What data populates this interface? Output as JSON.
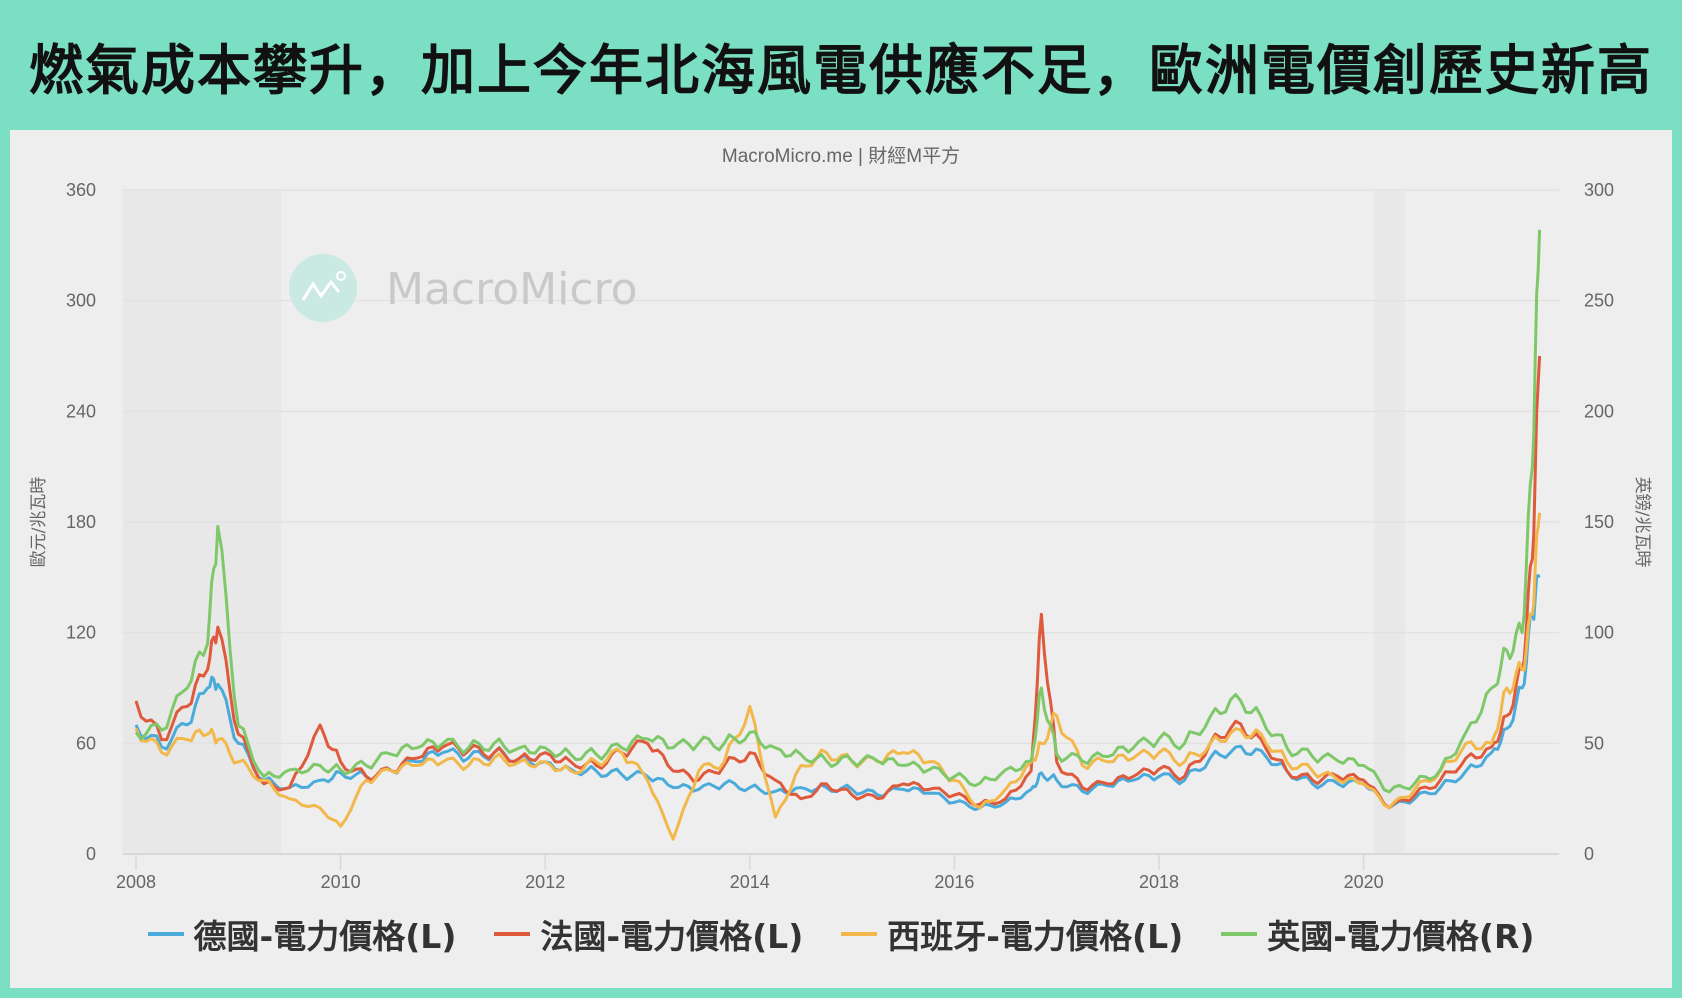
{
  "headline": "燃氣成本攀升，加上今年北海風電供應不足，歐洲電價創歷史新高",
  "source_credit": "MacroMicro.me | 財經M平方",
  "watermark": "MacroMicro",
  "colors": {
    "frame": "#7be0c3",
    "panel": "#eeeeee",
    "germany": "#4aabdb",
    "france": "#df5a3c",
    "spain": "#f2b84b",
    "uk": "#7ec86a"
  },
  "legend": [
    {
      "label": "德國-電力價格(L)",
      "color": "#4aabdb"
    },
    {
      "label": "法國-電力價格(L)",
      "color": "#df5a3c"
    },
    {
      "label": "西班牙-電力價格(L)",
      "color": "#f2b84b"
    },
    {
      "label": "英國-電力價格(R)",
      "color": "#7ec86a"
    }
  ],
  "chart_data": {
    "type": "line",
    "title": "燃氣成本攀升，加上今年北海風電供應不足，歐洲電價創歷史新高",
    "subtitle": "MacroMicro.me | 財經M平方",
    "xlabel": "",
    "ylabel_left": "歐元/兆瓦時",
    "ylabel_right": "英鎊/兆瓦時",
    "xlim": [
      2008.0,
      2021.75
    ],
    "ylim_left": [
      0,
      360
    ],
    "ylim_right": [
      0,
      300
    ],
    "yticks_left": [
      "0",
      "60",
      "120",
      "180",
      "240",
      "300",
      "360"
    ],
    "yticks_right": [
      "0",
      "50",
      "100",
      "150",
      "200",
      "250",
      "300"
    ],
    "xticks": [
      "2008",
      "2010",
      "2012",
      "2014",
      "2016",
      "2018",
      "2020"
    ],
    "grid": true,
    "legend_position": "bottom",
    "x": [
      2008.0,
      2008.25,
      2008.5,
      2008.7,
      2008.8,
      2009.0,
      2009.25,
      2009.5,
      2009.8,
      2010.0,
      2010.25,
      2010.5,
      2010.75,
      2011.0,
      2011.25,
      2011.5,
      2011.75,
      2012.0,
      2012.25,
      2012.5,
      2012.75,
      2013.0,
      2013.25,
      2013.5,
      2013.75,
      2014.0,
      2014.25,
      2014.5,
      2014.75,
      2015.0,
      2015.25,
      2015.5,
      2015.75,
      2016.0,
      2016.25,
      2016.5,
      2016.75,
      2016.85,
      2017.0,
      2017.25,
      2017.5,
      2017.75,
      2018.0,
      2018.25,
      2018.5,
      2018.75,
      2019.0,
      2019.25,
      2019.5,
      2019.75,
      2020.0,
      2020.25,
      2020.5,
      2020.75,
      2021.0,
      2021.25,
      2021.4,
      2021.55,
      2021.65,
      2021.72
    ],
    "series": [
      {
        "name": "德國-電力價格(L)",
        "axis": "left",
        "values": [
          70,
          58,
          70,
          90,
          92,
          60,
          40,
          36,
          40,
          44,
          42,
          45,
          50,
          55,
          52,
          55,
          52,
          50,
          46,
          45,
          43,
          42,
          36,
          35,
          38,
          36,
          34,
          36,
          36,
          35,
          32,
          35,
          33,
          28,
          25,
          28,
          35,
          44,
          40,
          34,
          37,
          40,
          42,
          40,
          52,
          58,
          56,
          45,
          38,
          38,
          38,
          25,
          30,
          36,
          45,
          55,
          68,
          90,
          130,
          150
        ]
      },
      {
        "name": "法國-電力價格(L)",
        "axis": "left",
        "values": [
          83,
          62,
          80,
          100,
          123,
          65,
          38,
          36,
          70,
          50,
          42,
          45,
          52,
          58,
          56,
          55,
          52,
          55,
          50,
          48,
          55,
          60,
          45,
          40,
          48,
          55,
          40,
          30,
          38,
          32,
          30,
          38,
          35,
          32,
          27,
          30,
          45,
          130,
          50,
          36,
          38,
          42,
          46,
          42,
          60,
          72,
          62,
          45,
          40,
          42,
          40,
          25,
          32,
          40,
          52,
          58,
          75,
          100,
          160,
          270
        ]
      },
      {
        "name": "西班牙-電力價格(L)",
        "axis": "left",
        "values": [
          68,
          55,
          62,
          65,
          62,
          50,
          40,
          30,
          25,
          15,
          40,
          45,
          48,
          50,
          48,
          52,
          50,
          50,
          45,
          50,
          55,
          40,
          8,
          45,
          50,
          80,
          20,
          48,
          55,
          50,
          50,
          55,
          50,
          40,
          25,
          35,
          50,
          60,
          75,
          48,
          50,
          52,
          55,
          50,
          60,
          68,
          65,
          50,
          45,
          40,
          38,
          25,
          35,
          45,
          60,
          60,
          90,
          100,
          130,
          185
        ]
      },
      {
        "name": "英國-電力價格(R)",
        "axis": "right",
        "values": [
          55,
          56,
          75,
          95,
          148,
          58,
          35,
          38,
          40,
          38,
          40,
          45,
          48,
          50,
          48,
          50,
          48,
          48,
          45,
          45,
          48,
          52,
          48,
          50,
          50,
          55,
          48,
          45,
          42,
          42,
          42,
          40,
          38,
          35,
          32,
          38,
          42,
          75,
          45,
          42,
          44,
          48,
          52,
          50,
          62,
          72,
          62,
          48,
          44,
          42,
          40,
          28,
          32,
          38,
          55,
          75,
          92,
          100,
          175,
          282
        ]
      }
    ]
  }
}
